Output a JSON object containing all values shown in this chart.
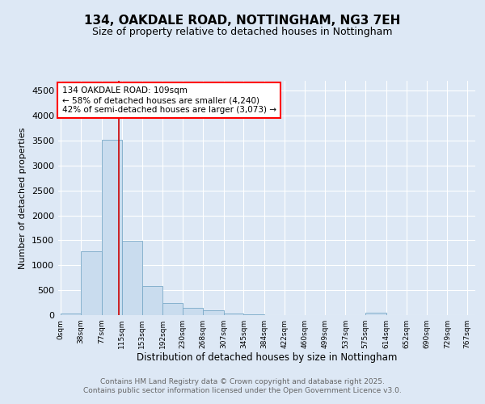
{
  "title": "134, OAKDALE ROAD, NOTTINGHAM, NG3 7EH",
  "subtitle": "Size of property relative to detached houses in Nottingham",
  "xlabel": "Distribution of detached houses by size in Nottingham",
  "ylabel": "Number of detached properties",
  "annotation_line1": "134 OAKDALE ROAD: 109sqm",
  "annotation_line2": "← 58% of detached houses are smaller (4,240)",
  "annotation_line3": "42% of semi-detached houses are larger (3,073) →",
  "bin_edges": [
    0,
    38,
    77,
    115,
    153,
    192,
    230,
    268,
    307,
    345,
    384,
    422,
    460,
    499,
    537,
    575,
    614,
    652,
    690,
    729,
    767
  ],
  "bin_labels": [
    "0sqm",
    "38sqm",
    "77sqm",
    "115sqm",
    "153sqm",
    "192sqm",
    "230sqm",
    "268sqm",
    "307sqm",
    "345sqm",
    "384sqm",
    "422sqm",
    "460sqm",
    "499sqm",
    "537sqm",
    "575sqm",
    "614sqm",
    "652sqm",
    "690sqm",
    "729sqm",
    "767sqm"
  ],
  "bar_values": [
    30,
    1280,
    3520,
    1490,
    590,
    250,
    140,
    90,
    30,
    10,
    5,
    5,
    0,
    0,
    0,
    50,
    0,
    0,
    0,
    0
  ],
  "bar_color": "#c9dcee",
  "bar_edge_color": "#7aaac8",
  "vline_x": 109,
  "vline_color": "#cc0000",
  "ylim": [
    0,
    4700
  ],
  "yticks": [
    0,
    500,
    1000,
    1500,
    2000,
    2500,
    3000,
    3500,
    4000,
    4500
  ],
  "background_color": "#dde8f5",
  "plot_background": "#dde8f5",
  "grid_color": "white",
  "footer_line1": "Contains HM Land Registry data © Crown copyright and database right 2025.",
  "footer_line2": "Contains public sector information licensed under the Open Government Licence v3.0.",
  "title_fontsize": 11,
  "subtitle_fontsize": 9,
  "annotation_fontsize": 7.5,
  "footer_fontsize": 6.5
}
